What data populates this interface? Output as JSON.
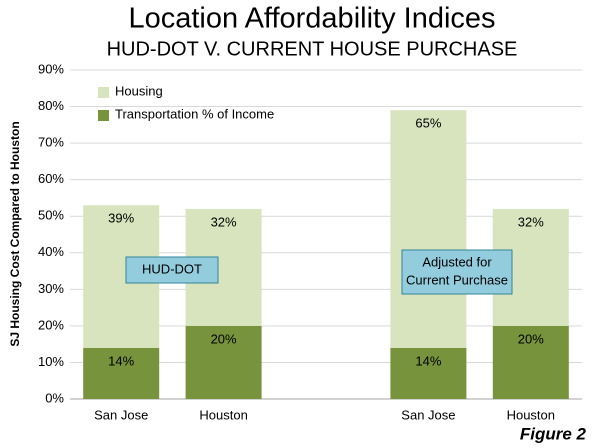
{
  "chart_data": {
    "type": "stacked-bar",
    "title": "Location Affordability Indices",
    "subtitle": "HUD-DOT V. CURRENT HOUSE PURCHASE",
    "y_label": "SJ Housing Cost Compared to  Houston",
    "categories": [
      "San Jose",
      "Houston",
      null,
      "San Jose",
      "Houston"
    ],
    "series": [
      {
        "name": "Transportation % of Income",
        "color": "#77933c",
        "values": [
          14,
          20,
          null,
          14,
          20
        ],
        "value_labels": [
          "14%",
          "20%",
          null,
          "14%",
          "20%"
        ]
      },
      {
        "name": "Housing",
        "color": "#d7e4bd",
        "values": [
          39,
          32,
          null,
          65,
          32
        ],
        "value_labels": [
          "39%",
          "32%",
          null,
          "65%",
          "32%"
        ]
      }
    ],
    "ylim": [
      0,
      90
    ],
    "yticks": [
      {
        "value": 0,
        "label": "0%"
      },
      {
        "value": 10,
        "label": "10%"
      },
      {
        "value": 20,
        "label": "20%"
      },
      {
        "value": 30,
        "label": "30%"
      },
      {
        "value": 40,
        "label": "40%"
      },
      {
        "value": 50,
        "label": "50%"
      },
      {
        "value": 60,
        "label": "60%"
      },
      {
        "value": 70,
        "label": "70%"
      },
      {
        "value": 80,
        "label": "80%"
      },
      {
        "value": 90,
        "label": "90%"
      }
    ],
    "grid": true,
    "legend": "upper left",
    "annotations": [
      {
        "lines": [
          "HUD-DOT"
        ]
      },
      {
        "lines": [
          "Adjusted for",
          "Current Purchase"
        ]
      }
    ],
    "footer": "Figure 2"
  }
}
